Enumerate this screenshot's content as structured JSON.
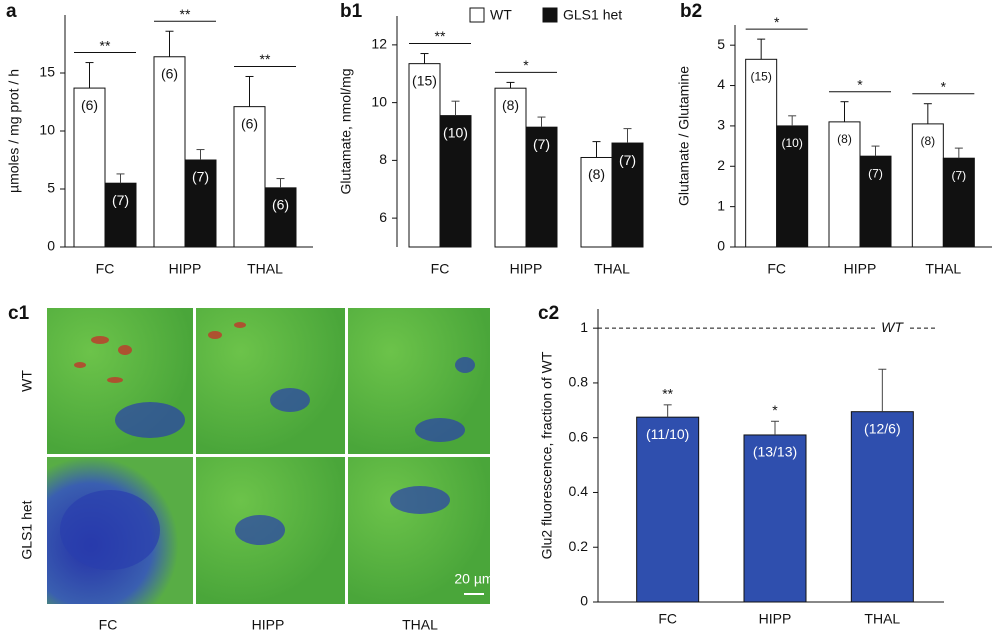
{
  "chart_data": [
    {
      "type": "bar",
      "panel": "a",
      "ylabel": "µmoles / mg prot / h",
      "categories": [
        "FC",
        "HIPP",
        "THAL"
      ],
      "series": [
        {
          "name": "WT",
          "color": "#ffffff",
          "values": [
            13.7,
            16.4,
            12.1
          ],
          "errors": [
            2.2,
            2.2,
            2.6
          ],
          "n_labels": [
            "(6)",
            "(6)",
            "(6)"
          ]
        },
        {
          "name": "GLS1 het",
          "color": "#111111",
          "values": [
            5.5,
            7.5,
            5.1
          ],
          "errors": [
            0.8,
            0.9,
            0.8
          ],
          "n_labels": [
            "(7)",
            "(7)",
            "(6)"
          ]
        }
      ],
      "significance": [
        "**",
        "**",
        "**"
      ],
      "ylim": [
        0,
        20
      ],
      "yticks": [
        0,
        5,
        10,
        15
      ]
    },
    {
      "type": "bar",
      "panel": "b1",
      "ylabel": "Glutamate, nmol/mg",
      "legend": "top",
      "categories": [
        "FC",
        "HIPP",
        "THAL"
      ],
      "series": [
        {
          "name": "WT",
          "color": "#ffffff",
          "values": [
            11.35,
            10.5,
            8.1
          ],
          "errors": [
            0.35,
            0.2,
            0.55
          ],
          "n_labels": [
            "(15)",
            "(8)",
            "(8)"
          ]
        },
        {
          "name": "GLS1 het",
          "color": "#111111",
          "values": [
            9.55,
            9.15,
            8.6
          ],
          "errors": [
            0.5,
            0.35,
            0.5
          ],
          "n_labels": [
            "(10)",
            "(7)",
            "(7)"
          ]
        }
      ],
      "significance": [
        "**",
        "*",
        null
      ],
      "ylim": [
        5,
        13
      ],
      "yticks": [
        6,
        8,
        10,
        12
      ]
    },
    {
      "type": "bar",
      "panel": "b2",
      "ylabel": "Glutamate / Glutamine",
      "categories": [
        "FC",
        "HIPP",
        "THAL"
      ],
      "series": [
        {
          "name": "WT",
          "color": "#ffffff",
          "values": [
            4.65,
            3.1,
            3.05
          ],
          "errors": [
            0.5,
            0.5,
            0.5
          ],
          "n_labels": [
            "(15)",
            "(8)",
            "(8)"
          ]
        },
        {
          "name": "GLS1 het",
          "color": "#111111",
          "values": [
            3.0,
            2.25,
            2.2
          ],
          "errors": [
            0.25,
            0.25,
            0.25
          ],
          "n_labels": [
            "(10)",
            "(7)",
            "(7)"
          ]
        }
      ],
      "significance": [
        "*",
        "*",
        "*"
      ],
      "ylim": [
        0,
        5.5
      ],
      "yticks": [
        0,
        1,
        2,
        3,
        4,
        5
      ]
    },
    {
      "type": "bar",
      "panel": "c2",
      "ylabel": "Glu2 fluorescence, fraction of WT",
      "categories": [
        "FC",
        "HIPP",
        "THAL"
      ],
      "series": [
        {
          "name": "GLS1 het",
          "color": "#2f4fae",
          "values": [
            0.675,
            0.61,
            0.695
          ],
          "errors": [
            0.045,
            0.05,
            0.155
          ],
          "n_labels": [
            "(11/10)",
            "(13/13)",
            "(12/6)"
          ]
        }
      ],
      "significance": [
        "**",
        "*",
        null
      ],
      "reference_line": {
        "value": 1,
        "label": "WT"
      },
      "ylim": [
        0,
        1.07
      ],
      "yticks": [
        0,
        0.2,
        0.4,
        0.6,
        0.8,
        1
      ]
    }
  ],
  "image_panel": {
    "panel": "c1",
    "rows": [
      "WT",
      "GLS1 het"
    ],
    "columns": [
      "FC",
      "HIPP",
      "THAL"
    ],
    "scale_bar": "20 µm"
  }
}
